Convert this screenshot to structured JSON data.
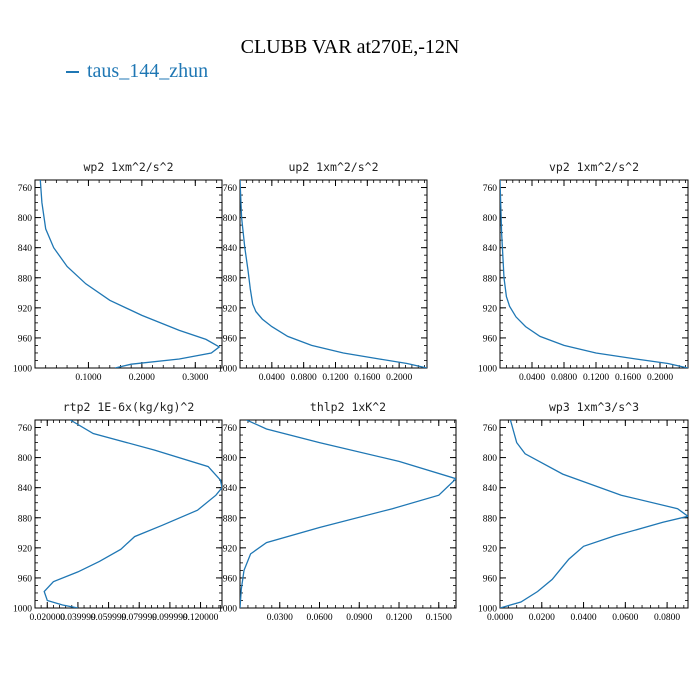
{
  "title": "CLUBB VAR at270E,-12N",
  "legend": {
    "label": "taus_144_zhun",
    "color": "#1f77b4"
  },
  "chart_data": [
    {
      "type": "line",
      "title": "wp2  1xm^2/s^2",
      "xlim": [
        0,
        0.35
      ],
      "ylim": [
        1000,
        750
      ],
      "xticks": [
        0.1,
        0.2,
        0.3
      ],
      "xtick_labels": [
        "0.1000",
        "0.2000",
        "0.3000"
      ],
      "yticks": [
        760,
        800,
        840,
        880,
        920,
        960,
        1000
      ],
      "yticks_labels": [
        "760",
        "800",
        "840",
        "880",
        "920",
        "960",
        "1000"
      ],
      "series": [
        {
          "x": [
            0.01,
            0.013,
            0.02,
            0.035,
            0.06,
            0.095,
            0.14,
            0.2,
            0.27,
            0.32,
            0.345,
            0.33,
            0.27,
            0.18,
            0.15
          ],
          "y": [
            750,
            780,
            815,
            840,
            865,
            888,
            910,
            930,
            950,
            962,
            972,
            980,
            988,
            995,
            1000
          ]
        }
      ]
    },
    {
      "type": "line",
      "title": "up2  1xm^2/s^2",
      "xlim": [
        0,
        0.235
      ],
      "ylim": [
        1000,
        750
      ],
      "xticks": [
        0.04,
        0.08,
        0.12,
        0.16,
        0.2
      ],
      "xtick_labels": [
        "0.0400",
        "0.0800",
        "0.1200",
        "0.1600",
        "0.2000"
      ],
      "yticks": [
        760,
        800,
        840,
        880,
        920,
        960,
        1000
      ],
      "yticks_labels": [
        "760",
        "800",
        "840",
        "880",
        "920",
        "960",
        "1000"
      ],
      "series": [
        {
          "x": [
            0.0,
            0.002,
            0.006,
            0.01,
            0.013,
            0.016,
            0.02,
            0.028,
            0.04,
            0.06,
            0.09,
            0.13,
            0.175,
            0.21,
            0.235
          ],
          "y": [
            750,
            800,
            840,
            870,
            895,
            915,
            925,
            935,
            945,
            958,
            970,
            980,
            988,
            994,
            1000
          ]
        }
      ]
    },
    {
      "type": "line",
      "title": "vp2  1xm^2/s^2",
      "xlim": [
        0,
        0.235
      ],
      "ylim": [
        1000,
        750
      ],
      "xticks": [
        0.04,
        0.08,
        0.12,
        0.16,
        0.2
      ],
      "xtick_labels": [
        "0.0400",
        "0.0800",
        "0.1200",
        "0.1600",
        "0.2000"
      ],
      "yticks": [
        760,
        800,
        840,
        880,
        920,
        960,
        1000
      ],
      "yticks_labels": [
        "760",
        "800",
        "840",
        "880",
        "920",
        "960",
        "1000"
      ],
      "series": [
        {
          "x": [
            0.0,
            0.002,
            0.005,
            0.008,
            0.012,
            0.02,
            0.032,
            0.05,
            0.08,
            0.12,
            0.17,
            0.21,
            0.235
          ],
          "y": [
            750,
            820,
            880,
            905,
            918,
            932,
            945,
            958,
            970,
            980,
            988,
            994,
            1000
          ]
        }
      ]
    },
    {
      "type": "line",
      "title": "rtp2  1E-6x(kg/kg)^2",
      "xlim": [
        0.012,
        0.134
      ],
      "ylim": [
        1000,
        750
      ],
      "xticks": [
        0.02,
        0.04,
        0.06,
        0.08,
        0.1,
        0.12
      ],
      "xtick_labels": [
        "0.020000",
        "0.039999",
        "0.059999",
        "0.079999",
        "0.099999",
        "0.120000"
      ],
      "yticks": [
        760,
        800,
        840,
        880,
        920,
        960,
        1000
      ],
      "yticks_labels": [
        "760",
        "800",
        "840",
        "880",
        "920",
        "960",
        "1000"
      ],
      "series": [
        {
          "x": [
            0.035,
            0.05,
            0.09,
            0.125,
            0.133,
            0.134,
            0.13,
            0.118,
            0.095,
            0.077,
            0.068,
            0.054,
            0.04,
            0.024,
            0.018,
            0.02,
            0.03,
            0.04
          ],
          "y": [
            750,
            768,
            790,
            812,
            830,
            840,
            850,
            870,
            890,
            905,
            922,
            938,
            952,
            965,
            978,
            990,
            996,
            1000
          ]
        }
      ]
    },
    {
      "type": "line",
      "title": "thlp2  1xK^2",
      "xlim": [
        0,
        0.163
      ],
      "ylim": [
        1000,
        750
      ],
      "xticks": [
        0.03,
        0.06,
        0.09,
        0.12,
        0.15
      ],
      "xtick_labels": [
        "0.0300",
        "0.0600",
        "0.0900",
        "0.1200",
        "0.1500"
      ],
      "yticks": [
        760,
        800,
        840,
        880,
        920,
        960,
        1000
      ],
      "yticks_labels": [
        "760",
        "800",
        "840",
        "880",
        "920",
        "960",
        "1000"
      ],
      "series": [
        {
          "x": [
            0.005,
            0.02,
            0.06,
            0.12,
            0.163,
            0.15,
            0.115,
            0.06,
            0.02,
            0.008,
            0.003,
            0.001,
            0.0
          ],
          "y": [
            750,
            762,
            780,
            805,
            828,
            850,
            868,
            893,
            913,
            928,
            950,
            975,
            1000
          ]
        }
      ]
    },
    {
      "type": "line",
      "title": "wp3  1xm^3/s^3",
      "xlim": [
        0,
        0.09
      ],
      "ylim": [
        1000,
        750
      ],
      "xticks": [
        0.0,
        0.02,
        0.04,
        0.06,
        0.08
      ],
      "xtick_labels": [
        "0.0000",
        "0.0200",
        "0.0400",
        "0.0600",
        "0.0800"
      ],
      "yticks": [
        760,
        800,
        840,
        880,
        920,
        960,
        1000
      ],
      "yticks_labels": [
        "760",
        "800",
        "840",
        "880",
        "920",
        "960",
        "1000"
      ],
      "series": [
        {
          "x": [
            0.005,
            0.006,
            0.008,
            0.012,
            0.03,
            0.058,
            0.085,
            0.09,
            0.078,
            0.055,
            0.04,
            0.033,
            0.03,
            0.025,
            0.018,
            0.01,
            0.0
          ],
          "y": [
            750,
            760,
            780,
            795,
            822,
            850,
            868,
            878,
            886,
            904,
            918,
            935,
            945,
            962,
            978,
            992,
            1000
          ]
        }
      ]
    }
  ]
}
